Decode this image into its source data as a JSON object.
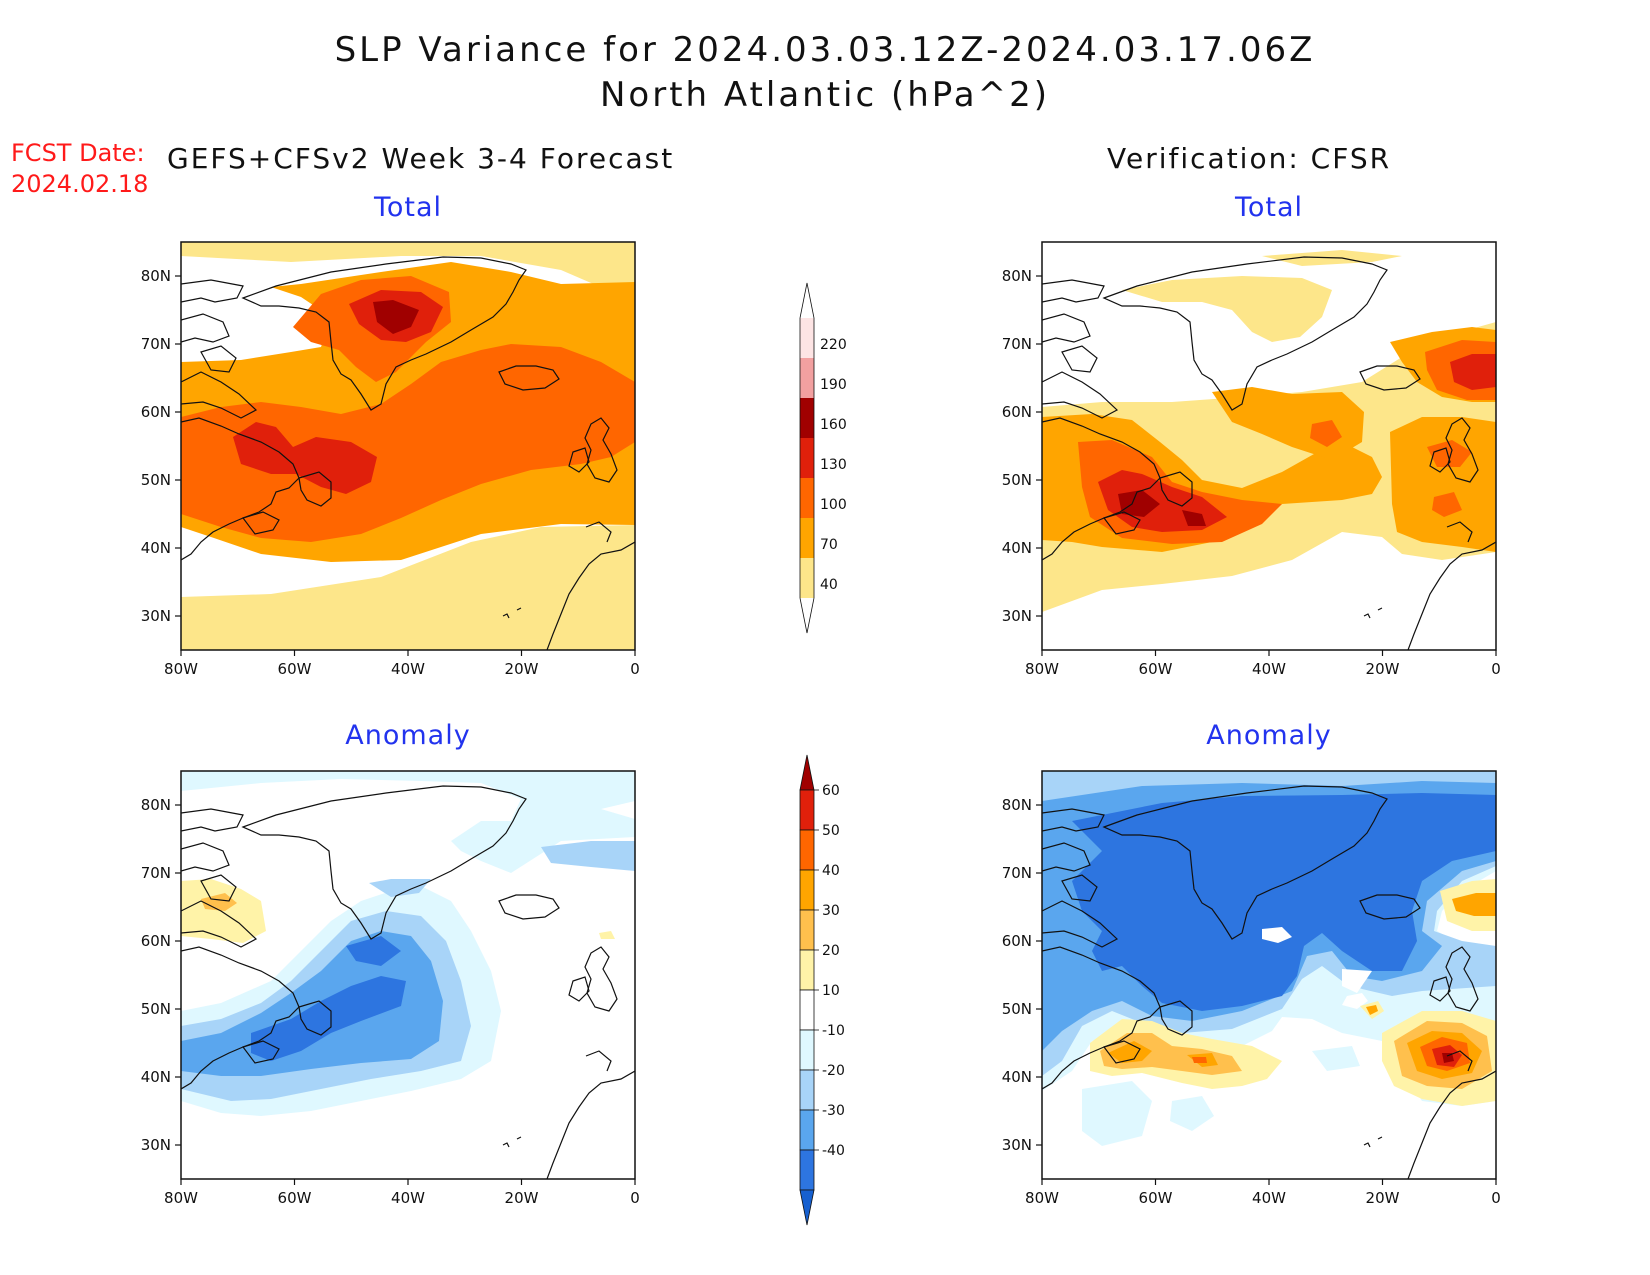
{
  "title": {
    "line1": "SLP Variance for 2024.03.03.12Z-2024.03.17.06Z",
    "line2": "North Atlantic (hPa^2)"
  },
  "fcst_date": {
    "label": "FCST Date:",
    "value": "2024.02.18"
  },
  "columns": {
    "left": "GEFS+CFSv2 Week 3-4 Forecast",
    "right": "Verification: CFSR"
  },
  "panels": [
    {
      "title": "Total",
      "field": "total",
      "source": "forecast"
    },
    {
      "title": "Total",
      "field": "total",
      "source": "verification"
    },
    {
      "title": "Anomaly",
      "field": "anomaly",
      "source": "forecast"
    },
    {
      "title": "Anomaly",
      "field": "anomaly",
      "source": "verification"
    }
  ],
  "axes": {
    "lon_ticks": [
      "80W",
      "60W",
      "40W",
      "20W",
      "0"
    ],
    "lat_ticks": [
      "80N",
      "70N",
      "60N",
      "50N",
      "40N",
      "30N"
    ]
  },
  "colorbars": {
    "total": {
      "labels": [
        "40",
        "70",
        "100",
        "130",
        "160",
        "190",
        "220"
      ],
      "colors": [
        "#fde68a",
        "#ffa500",
        "#ff6600",
        "#e0200b",
        "#a00000",
        "#f2a0a0",
        "#fde4e4"
      ]
    },
    "anomaly": {
      "labels": [
        "60",
        "50",
        "40",
        "30",
        "20",
        "10",
        "-10",
        "-20",
        "-30",
        "-40"
      ],
      "colors": [
        "#a00000",
        "#e0200b",
        "#ff6600",
        "#ffa500",
        "#ffc04d",
        "#fff3a8",
        "#ffffff",
        "#dff8ff",
        "#a8d4f8",
        "#5aa6ee",
        "#2d75e0",
        "#1660d0"
      ]
    }
  },
  "chart_data": [
    {
      "type": "heatmap",
      "title": "Total",
      "xlim": [
        -80,
        0
      ],
      "ylim": [
        25,
        85
      ],
      "levels": [
        40,
        70,
        100,
        130,
        160,
        190,
        220
      ],
      "features": [
        {
          "level": 160,
          "center": [
            -40,
            74
          ]
        },
        {
          "level": 130,
          "center": [
            -62,
            52
          ]
        }
      ]
    },
    {
      "type": "heatmap",
      "title": "Total",
      "xlim": [
        -80,
        0
      ],
      "ylim": [
        25,
        85
      ],
      "levels": [
        40,
        70,
        100,
        130,
        160,
        190,
        220
      ],
      "features": [
        {
          "level": 160,
          "center": [
            -62,
            44
          ]
        },
        {
          "level": 130,
          "center": [
            -3,
            64
          ]
        }
      ]
    },
    {
      "type": "heatmap",
      "title": "Anomaly",
      "xlim": [
        -80,
        0
      ],
      "ylim": [
        25,
        85
      ],
      "levels": [
        -40,
        -30,
        -20,
        -10,
        10,
        20,
        30,
        40,
        50,
        60
      ],
      "features": [
        {
          "level": -40,
          "center": [
            -50,
            52
          ]
        },
        {
          "level": 20,
          "center": [
            -70,
            65
          ]
        }
      ]
    },
    {
      "type": "heatmap",
      "title": "Anomaly",
      "xlim": [
        -80,
        0
      ],
      "ylim": [
        25,
        85
      ],
      "levels": [
        -40,
        -30,
        -20,
        -10,
        10,
        20,
        30,
        40,
        50,
        60
      ],
      "features": [
        {
          "level": -40,
          "center": [
            -40,
            65
          ]
        },
        {
          "level": 60,
          "center": [
            -10,
            45
          ]
        },
        {
          "level": 40,
          "center": [
            -58,
            43
          ]
        }
      ]
    }
  ]
}
